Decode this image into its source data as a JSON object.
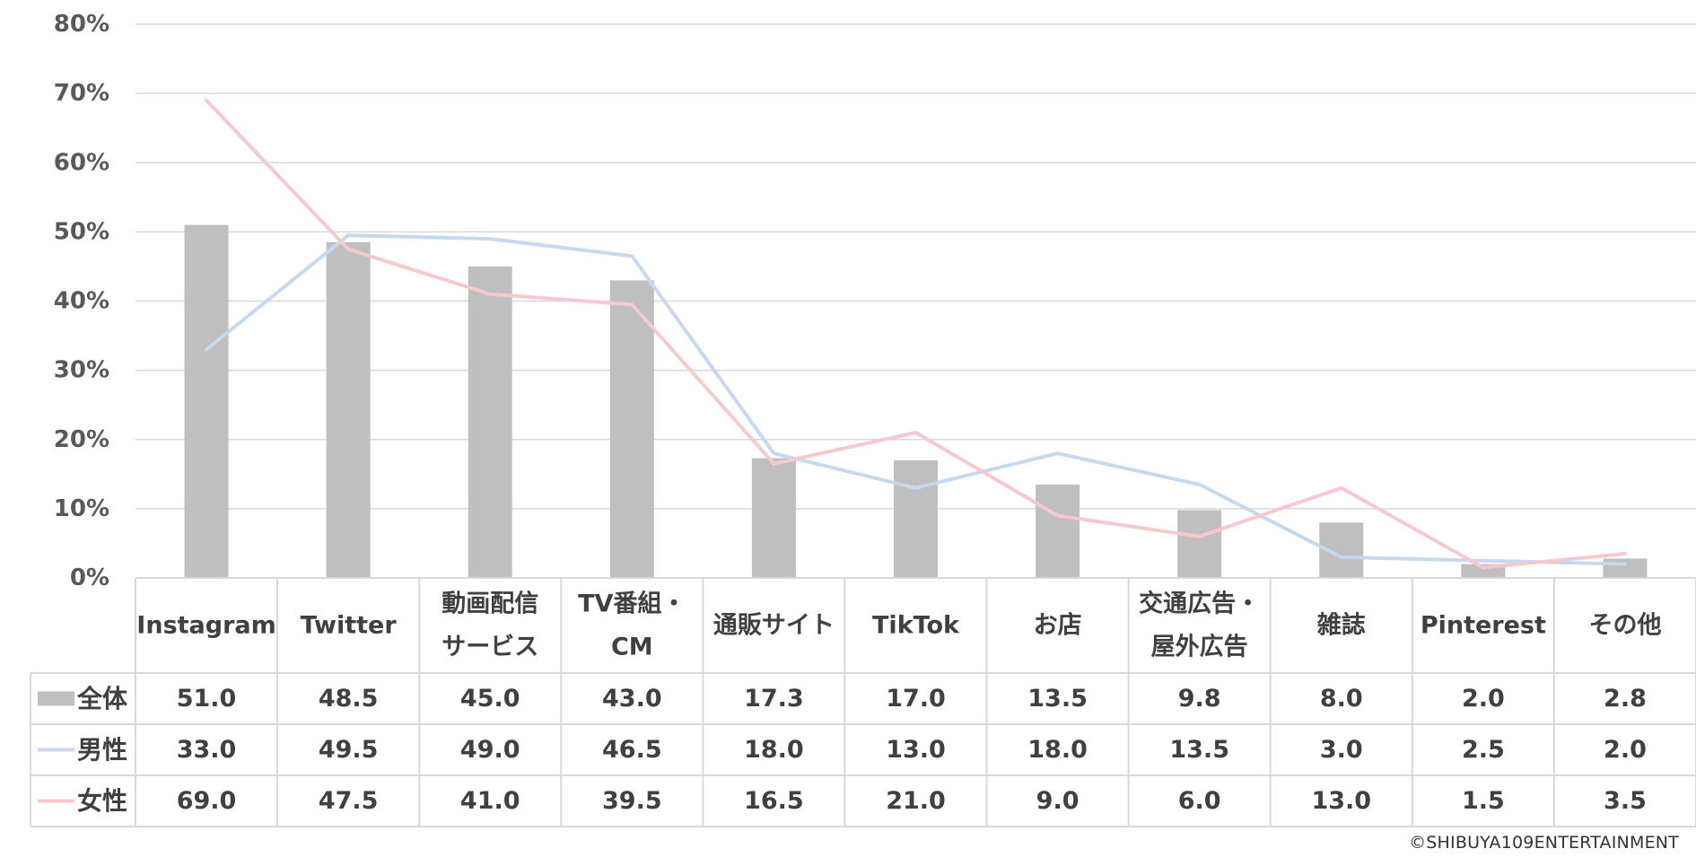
{
  "chart_data": {
    "type": "bar",
    "categories": [
      [
        "Instagram"
      ],
      [
        "Twitter"
      ],
      [
        "動画配信",
        "サービス"
      ],
      [
        "TV番組・",
        "CM"
      ],
      [
        "通販サイト"
      ],
      [
        "TikTok"
      ],
      [
        "お店"
      ],
      [
        "交通広告・",
        "屋外広告"
      ],
      [
        "雑誌"
      ],
      [
        "Pinterest"
      ],
      [
        "その他"
      ]
    ],
    "y_ticks": [
      "0%",
      "10%",
      "20%",
      "30%",
      "40%",
      "50%",
      "60%",
      "70%",
      "80%"
    ],
    "ylim": [
      0,
      80
    ],
    "grid": true,
    "series": [
      {
        "name": "全体",
        "type": "bar",
        "color": "#bfbfbf",
        "values": [
          51.0,
          48.5,
          45.0,
          43.0,
          17.3,
          17.0,
          13.5,
          9.8,
          8.0,
          2.0,
          2.8
        ],
        "labels": [
          "51.0",
          "48.5",
          "45.0",
          "43.0",
          "17.3",
          "17.0",
          "13.5",
          "9.8",
          "8.0",
          "2.0",
          "2.8"
        ]
      },
      {
        "name": "男性",
        "type": "line",
        "color": "#c6d9f1",
        "values": [
          33.0,
          49.5,
          49.0,
          46.5,
          18.0,
          13.0,
          18.0,
          13.5,
          3.0,
          2.5,
          2.0
        ],
        "labels": [
          "33.0",
          "49.5",
          "49.0",
          "46.5",
          "18.0",
          "13.0",
          "18.0",
          "13.5",
          "3.0",
          "2.5",
          "2.0"
        ]
      },
      {
        "name": "女性",
        "type": "line",
        "color": "#f8c9cc",
        "values": [
          69.0,
          47.5,
          41.0,
          39.5,
          16.5,
          21.0,
          9.0,
          6.0,
          13.0,
          1.5,
          3.5
        ],
        "labels": [
          "69.0",
          "47.5",
          "41.0",
          "39.5",
          "16.5",
          "21.0",
          "9.0",
          "6.0",
          "13.0",
          "1.5",
          "3.5"
        ]
      }
    ],
    "data_table": true,
    "grid_color": "#d9d9d9"
  },
  "copyright": "©SHIBUYA109ENTERTAINMENT"
}
